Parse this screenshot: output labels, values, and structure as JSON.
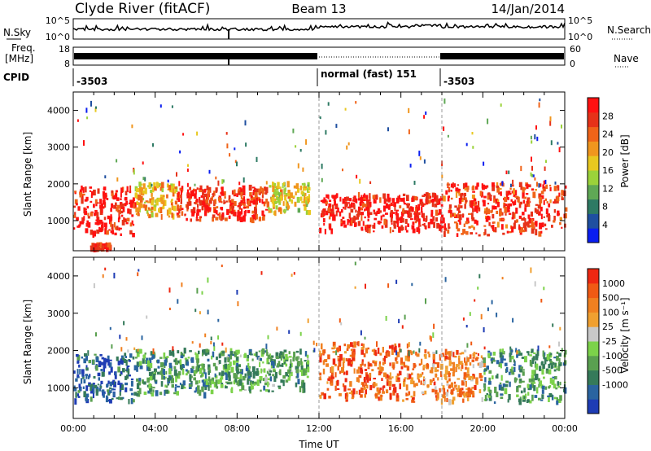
{
  "header": {
    "station": "Clyde River (fitACF)",
    "beam": "Beam 13",
    "date": "14/Jan/2014"
  },
  "noise_panel": {
    "left_label": "N.Sky",
    "right_label": "N.Search",
    "left_ticks": [
      "10^5",
      "10^0"
    ],
    "right_ticks": [
      "10^5",
      "10^0"
    ]
  },
  "freq_panel": {
    "label_line1": "Freq.",
    "label_line2": "[MHz]",
    "right_label": "Nave",
    "left_ticks": [
      "18",
      "8"
    ],
    "right_ticks": [
      "60",
      "0"
    ]
  },
  "cpid_panel": {
    "label": "CPID",
    "segments": [
      {
        "start_hour": 0,
        "end_hour": 12,
        "label": "-3503"
      },
      {
        "start_hour": 12,
        "end_hour": 18,
        "label": "normal (fast) 151"
      },
      {
        "start_hour": 18,
        "end_hour": 24,
        "label": "-3503"
      }
    ]
  },
  "chart_data": [
    {
      "type": "heatmap",
      "name": "power",
      "xlabel": "Time UT",
      "ylabel": "Slant Range [km]",
      "xlim": [
        0,
        24
      ],
      "ylim": [
        180,
        4500
      ],
      "yticks": [
        1000,
        2000,
        3000,
        4000
      ],
      "xticks": [
        "00:00",
        "04:00",
        "08:00",
        "12:00",
        "16:00",
        "20:00",
        "00:00"
      ],
      "colorbar": {
        "label": "Power [dB]",
        "ticks": [
          "4",
          "8",
          "12",
          "16",
          "20",
          "24",
          "28"
        ],
        "colors": [
          "#0a1ef0",
          "#1f4fa0",
          "#2e7a64",
          "#5fa855",
          "#9bd23a",
          "#e8c820",
          "#f0961e",
          "#f06419",
          "#e63219",
          "#ff1111"
        ]
      },
      "structures": [
        {
          "t0": 0.0,
          "t1": 3.0,
          "r0": 600,
          "r1": 1900,
          "level": 0.92
        },
        {
          "t0": 3.0,
          "t1": 5.0,
          "r0": 1100,
          "r1": 2000,
          "level": 0.62
        },
        {
          "t0": 5.0,
          "t1": 9.5,
          "r0": 1000,
          "r1": 1900,
          "level": 0.88
        },
        {
          "t0": 9.5,
          "t1": 11.5,
          "r0": 1200,
          "r1": 2000,
          "level": 0.55
        },
        {
          "t0": 12.0,
          "t1": 18.0,
          "r0": 700,
          "r1": 1700,
          "level": 0.95
        },
        {
          "t0": 18.0,
          "t1": 24.0,
          "r0": 600,
          "r1": 2000,
          "level": 0.85
        },
        {
          "t0": 0.8,
          "t1": 1.8,
          "r0": 200,
          "r1": 350,
          "level": 0.9
        }
      ]
    },
    {
      "type": "heatmap",
      "name": "velocity",
      "xlabel": "Time UT",
      "ylabel": "Slant Range [km]",
      "xlim": [
        0,
        24
      ],
      "ylim": [
        180,
        4500
      ],
      "yticks": [
        1000,
        2000,
        3000,
        4000
      ],
      "xticks": [
        "00:00",
        "04:00",
        "08:00",
        "12:00",
        "16:00",
        "20:00",
        "00:00"
      ],
      "colorbar": {
        "label": "Velocity [m s⁻¹]",
        "ticks": [
          "1000",
          "500",
          "100",
          "25",
          "-25",
          "-100",
          "-500",
          "-1000"
        ],
        "colors": [
          "#1e3cb4",
          "#2a64a0",
          "#357a5a",
          "#5aa050",
          "#7cd24a",
          "#c8c8c8",
          "#f0a030",
          "#f08020",
          "#f05a14",
          "#ee2812"
        ]
      },
      "structures": [
        {
          "t0": 0.0,
          "t1": 3.0,
          "r0": 600,
          "r1": 1900,
          "level": 0.15
        },
        {
          "t0": 3.0,
          "t1": 7.0,
          "r0": 800,
          "r1": 2000,
          "level": 0.3
        },
        {
          "t0": 7.0,
          "t1": 11.5,
          "r0": 900,
          "r1": 2000,
          "level": 0.35
        },
        {
          "t0": 12.0,
          "t1": 16.0,
          "r0": 700,
          "r1": 2200,
          "level": 0.85
        },
        {
          "t0": 16.0,
          "t1": 20.0,
          "r0": 600,
          "r1": 2000,
          "level": 0.75
        },
        {
          "t0": 20.0,
          "t1": 24.0,
          "r0": 600,
          "r1": 2000,
          "level": 0.3
        }
      ]
    }
  ]
}
